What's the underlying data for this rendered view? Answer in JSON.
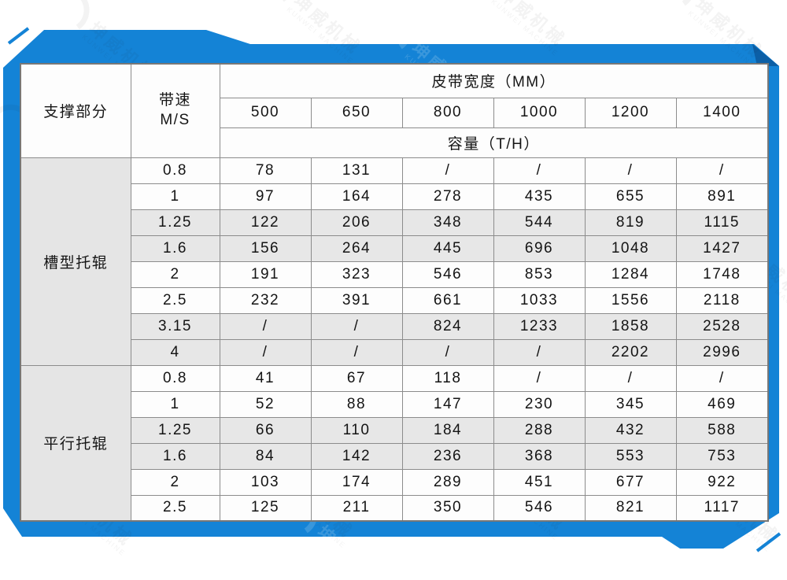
{
  "watermark": {
    "brand_cn": "坤威机械",
    "brand_en": "KUNWEI MACHINE"
  },
  "colors": {
    "frame_blue": "#1483d6",
    "frame_blue_dark": "#0c5fa6",
    "cell_gray": "#e5e5e5",
    "stripe_gray": "#e7e7e7",
    "border_gray": "#8c8c8c",
    "text": "#141414"
  },
  "table": {
    "corner_header": "支撑部分",
    "speed_header_line1": "带速",
    "speed_header_line2": "M/S",
    "width_header": "皮带宽度（MM）",
    "capacity_header": "容量（T/H）",
    "widths": [
      "500",
      "650",
      "800",
      "1000",
      "1200",
      "1400"
    ],
    "sections": [
      {
        "label": "槽型托辊",
        "rows": [
          {
            "speed": "0.8",
            "values": [
              "78",
              "131",
              "/",
              "/",
              "/",
              "/"
            ]
          },
          {
            "speed": "1",
            "values": [
              "97",
              "164",
              "278",
              "435",
              "655",
              "891"
            ]
          },
          {
            "speed": "1.25",
            "values": [
              "122",
              "206",
              "348",
              "544",
              "819",
              "1115"
            ]
          },
          {
            "speed": "1.6",
            "values": [
              "156",
              "264",
              "445",
              "696",
              "1048",
              "1427"
            ]
          },
          {
            "speed": "2",
            "values": [
              "191",
              "323",
              "546",
              "853",
              "1284",
              "1748"
            ]
          },
          {
            "speed": "2.5",
            "values": [
              "232",
              "391",
              "661",
              "1033",
              "1556",
              "2118"
            ]
          },
          {
            "speed": "3.15",
            "values": [
              "/",
              "/",
              "824",
              "1233",
              "1858",
              "2528"
            ]
          },
          {
            "speed": "4",
            "values": [
              "/",
              "/",
              "/",
              "/",
              "2202",
              "2996"
            ]
          }
        ]
      },
      {
        "label": "平行托辊",
        "rows": [
          {
            "speed": "0.8",
            "values": [
              "41",
              "67",
              "118",
              "/",
              "/",
              "/"
            ]
          },
          {
            "speed": "1",
            "values": [
              "52",
              "88",
              "147",
              "230",
              "345",
              "469"
            ]
          },
          {
            "speed": "1.25",
            "values": [
              "66",
              "110",
              "184",
              "288",
              "432",
              "588"
            ]
          },
          {
            "speed": "1.6",
            "values": [
              "84",
              "142",
              "236",
              "368",
              "553",
              "753"
            ]
          },
          {
            "speed": "2",
            "values": [
              "103",
              "174",
              "289",
              "451",
              "677",
              "922"
            ]
          },
          {
            "speed": "2.5",
            "values": [
              "125",
              "211",
              "350",
              "546",
              "821",
              "1117"
            ]
          }
        ]
      }
    ]
  },
  "chart_data": {
    "type": "table",
    "title": "皮带宽度（MM）/ 容量（T/H）",
    "columns": [
      "支撑部分",
      "带速 M/S",
      "500",
      "650",
      "800",
      "1000",
      "1200",
      "1400"
    ],
    "rows": [
      [
        "槽型托辊",
        "0.8",
        "78",
        "131",
        "/",
        "/",
        "/",
        "/"
      ],
      [
        "槽型托辊",
        "1",
        "97",
        "164",
        "278",
        "435",
        "655",
        "891"
      ],
      [
        "槽型托辊",
        "1.25",
        "122",
        "206",
        "348",
        "544",
        "819",
        "1115"
      ],
      [
        "槽型托辊",
        "1.6",
        "156",
        "264",
        "445",
        "696",
        "1048",
        "1427"
      ],
      [
        "槽型托辊",
        "2",
        "191",
        "323",
        "546",
        "853",
        "1284",
        "1748"
      ],
      [
        "槽型托辊",
        "2.5",
        "232",
        "391",
        "661",
        "1033",
        "1556",
        "2118"
      ],
      [
        "槽型托辊",
        "3.15",
        "/",
        "/",
        "824",
        "1233",
        "1858",
        "2528"
      ],
      [
        "槽型托辊",
        "4",
        "/",
        "/",
        "/",
        "/",
        "2202",
        "2996"
      ],
      [
        "平行托辊",
        "0.8",
        "41",
        "67",
        "118",
        "/",
        "/",
        "/"
      ],
      [
        "平行托辊",
        "1",
        "52",
        "88",
        "147",
        "230",
        "345",
        "469"
      ],
      [
        "平行托辊",
        "1.25",
        "66",
        "110",
        "184",
        "288",
        "432",
        "588"
      ],
      [
        "平行托辊",
        "1.6",
        "84",
        "142",
        "236",
        "368",
        "553",
        "753"
      ],
      [
        "平行托辊",
        "2",
        "103",
        "174",
        "289",
        "451",
        "677",
        "922"
      ],
      [
        "平行托辊",
        "2.5",
        "125",
        "211",
        "350",
        "546",
        "821",
        "1117"
      ]
    ]
  }
}
